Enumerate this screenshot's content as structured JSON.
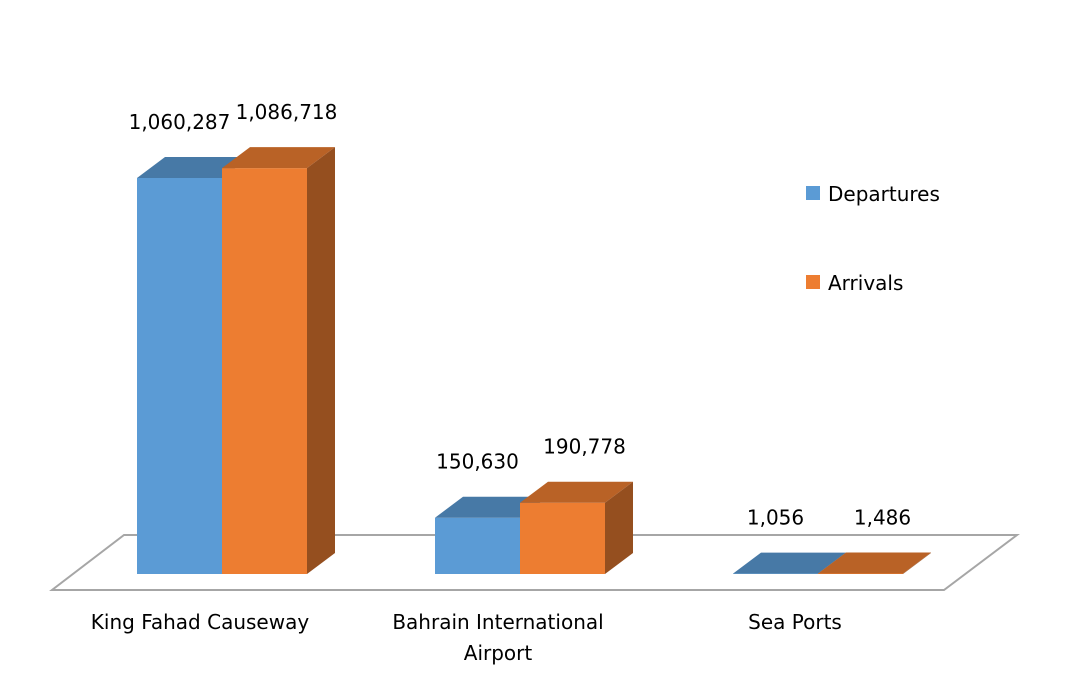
{
  "chart_data": {
    "type": "bar",
    "categories": [
      "King Fahad Causeway",
      "Bahrain International Airport",
      "Sea Ports"
    ],
    "category_label_lines": [
      [
        "King Fahad Causeway"
      ],
      [
        "Bahrain International",
        "Airport"
      ],
      [
        "Sea Ports"
      ]
    ],
    "series": [
      {
        "name": "Departures",
        "values": [
          1060287,
          150630,
          1056
        ],
        "labels": [
          "1,060,287",
          "150,630",
          "1,056"
        ],
        "color": "#5B9BD5"
      },
      {
        "name": "Arrivals",
        "values": [
          1086718,
          190778,
          1486
        ],
        "labels": [
          "1,086,718",
          "190,778",
          "1,486"
        ],
        "color": "#ED7D31"
      }
    ],
    "title": "",
    "xlabel": "",
    "ylabel": "",
    "ylim": [
      0,
      1100000
    ],
    "three_d": true,
    "grid": false,
    "legend_position": "right"
  }
}
